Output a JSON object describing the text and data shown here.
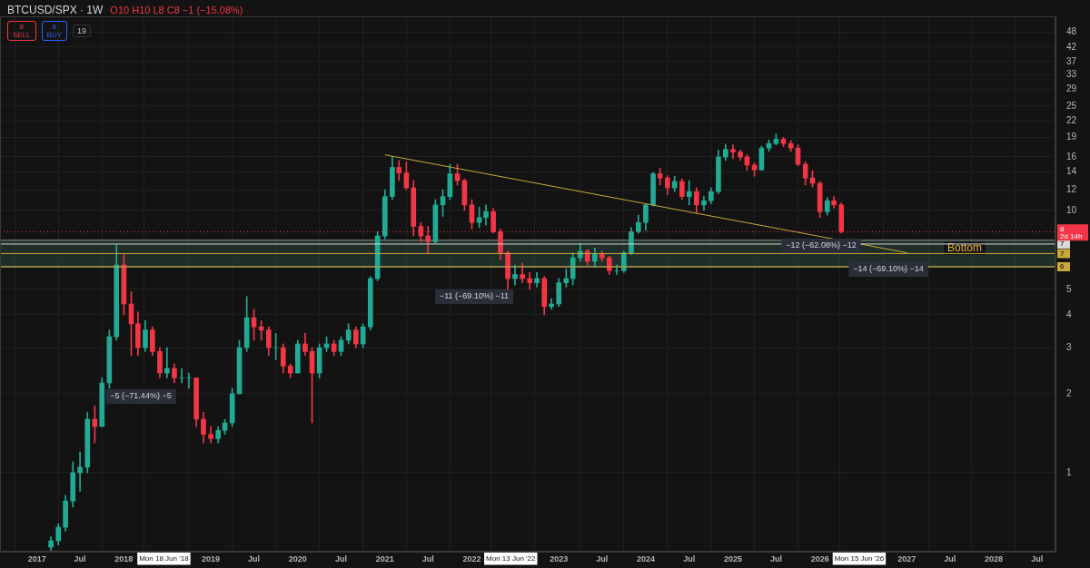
{
  "chart_data": {
    "type": "candlestick",
    "title": "BTCUSD/SPX · 1W",
    "subtitle": "O10 H10 L8 C8 −1 (−15.08%)",
    "x": [
      "2017-03",
      "2017-04",
      "2017-05",
      "2017-06",
      "2017-07",
      "2017-08",
      "2017-09",
      "2017-10",
      "2017-11",
      "2017-12",
      "2018-01",
      "2018-02",
      "2018-03",
      "2018-04",
      "2018-05",
      "2018-06",
      "2018-07",
      "2018-08",
      "2018-09",
      "2018-10",
      "2018-11",
      "2018-12",
      "2019-01",
      "2019-02",
      "2019-03",
      "2019-04",
      "2019-05",
      "2019-06",
      "2019-07",
      "2019-08",
      "2019-09",
      "2019-10",
      "2019-11",
      "2019-12",
      "2020-01",
      "2020-02",
      "2020-03",
      "2020-04",
      "2020-05",
      "2020-06",
      "2020-07",
      "2020-08",
      "2020-09",
      "2020-10",
      "2020-11",
      "2020-12",
      "2021-01",
      "2021-02",
      "2021-03",
      "2021-04",
      "2021-05",
      "2021-06",
      "2021-07",
      "2021-08",
      "2021-09",
      "2021-10",
      "2021-11",
      "2021-12",
      "2022-01",
      "2022-02",
      "2022-03",
      "2022-04",
      "2022-05",
      "2022-06",
      "2022-07",
      "2022-08",
      "2022-09",
      "2022-10",
      "2022-11",
      "2022-12",
      "2023-01",
      "2023-02",
      "2023-03",
      "2023-04",
      "2023-05",
      "2023-06",
      "2023-07",
      "2023-08",
      "2023-09",
      "2023-10",
      "2023-11",
      "2023-12",
      "2024-01",
      "2024-02",
      "2024-03",
      "2024-04",
      "2024-05",
      "2024-06",
      "2024-07",
      "2024-08",
      "2024-09",
      "2024-10",
      "2024-11",
      "2024-12",
      "2025-01",
      "2025-02",
      "2025-03",
      "2025-04",
      "2025-05",
      "2025-06",
      "2025-07",
      "2025-08",
      "2025-09",
      "2025-10",
      "2025-11",
      "2025-12",
      "2026-01",
      "2026-02",
      "2026-03",
      "2026-04"
    ],
    "ohlc": [
      [
        0.52,
        0.57,
        0.5,
        0.55
      ],
      [
        0.55,
        0.64,
        0.53,
        0.62
      ],
      [
        0.62,
        0.82,
        0.6,
        0.78
      ],
      [
        0.78,
        1.1,
        0.74,
        1.0
      ],
      [
        1.0,
        1.2,
        0.85,
        1.05
      ],
      [
        1.05,
        1.7,
        1.0,
        1.6
      ],
      [
        1.6,
        1.8,
        1.3,
        1.5
      ],
      [
        1.5,
        2.3,
        1.5,
        2.2
      ],
      [
        2.2,
        3.5,
        2.1,
        3.3
      ],
      [
        3.3,
        7.4,
        3.2,
        6.2
      ],
      [
        6.2,
        6.8,
        4.0,
        4.4
      ],
      [
        4.4,
        4.9,
        2.8,
        3.7
      ],
      [
        3.7,
        4.1,
        2.8,
        3.0
      ],
      [
        3.0,
        3.8,
        2.9,
        3.5
      ],
      [
        3.5,
        3.6,
        2.8,
        2.9
      ],
      [
        2.9,
        3.0,
        2.3,
        2.4
      ],
      [
        2.4,
        3.0,
        2.3,
        2.5
      ],
      [
        2.5,
        2.6,
        2.2,
        2.3
      ],
      [
        2.3,
        2.5,
        2.2,
        2.3
      ],
      [
        2.3,
        2.4,
        2.1,
        2.3
      ],
      [
        2.3,
        2.3,
        1.5,
        1.6
      ],
      [
        1.6,
        1.7,
        1.3,
        1.4
      ],
      [
        1.4,
        1.5,
        1.3,
        1.35
      ],
      [
        1.35,
        1.5,
        1.3,
        1.45
      ],
      [
        1.45,
        1.6,
        1.4,
        1.55
      ],
      [
        1.55,
        2.1,
        1.5,
        2.0
      ],
      [
        2.0,
        3.2,
        2.0,
        3.0
      ],
      [
        3.0,
        4.7,
        2.9,
        3.9
      ],
      [
        3.9,
        4.2,
        3.2,
        3.6
      ],
      [
        3.6,
        3.8,
        3.2,
        3.5
      ],
      [
        3.5,
        3.6,
        2.8,
        3.0
      ],
      [
        3.0,
        3.4,
        2.7,
        3.0
      ],
      [
        3.0,
        3.1,
        2.4,
        2.55
      ],
      [
        2.55,
        2.6,
        2.3,
        2.4
      ],
      [
        2.4,
        3.2,
        2.4,
        3.1
      ],
      [
        3.1,
        3.4,
        2.8,
        2.9
      ],
      [
        2.9,
        3.0,
        1.55,
        2.4
      ],
      [
        2.4,
        3.1,
        2.3,
        3.0
      ],
      [
        3.0,
        3.3,
        2.9,
        3.1
      ],
      [
        3.1,
        3.2,
        2.8,
        2.9
      ],
      [
        2.9,
        3.3,
        2.8,
        3.2
      ],
      [
        3.2,
        3.7,
        3.1,
        3.5
      ],
      [
        3.5,
        3.6,
        3.0,
        3.1
      ],
      [
        3.1,
        3.7,
        3.0,
        3.6
      ],
      [
        3.6,
        5.6,
        3.5,
        5.5
      ],
      [
        5.5,
        8.3,
        5.4,
        8.0
      ],
      [
        8.0,
        12,
        7.8,
        11.3
      ],
      [
        11.3,
        16,
        11,
        14.6
      ],
      [
        14.6,
        15.5,
        13,
        13.9
      ],
      [
        13.9,
        15.3,
        12,
        12.2
      ],
      [
        12.2,
        13,
        8.0,
        8.7
      ],
      [
        8.7,
        9.0,
        7.6,
        8.0
      ],
      [
        8.0,
        8.7,
        6.9,
        7.6
      ],
      [
        7.6,
        11,
        7.5,
        10.5
      ],
      [
        10.5,
        12,
        9.5,
        11.3
      ],
      [
        11.3,
        15,
        11,
        13.8
      ],
      [
        13.8,
        15,
        12.5,
        13.0
      ],
      [
        13.0,
        13.2,
        10,
        10.5
      ],
      [
        10.5,
        11,
        8.5,
        9.0
      ],
      [
        9.0,
        10.3,
        8.6,
        9.4
      ],
      [
        9.4,
        10.5,
        8.8,
        9.9
      ],
      [
        9.9,
        10.2,
        8.2,
        8.3
      ],
      [
        8.3,
        8.5,
        6.5,
        6.9
      ],
      [
        6.9,
        7.0,
        5.0,
        5.5
      ],
      [
        5.5,
        6.2,
        5.2,
        5.7
      ],
      [
        5.7,
        6.3,
        5.3,
        5.5
      ],
      [
        5.5,
        5.8,
        5.0,
        5.3
      ],
      [
        5.3,
        5.8,
        5.1,
        5.5
      ],
      [
        5.5,
        5.6,
        4.0,
        4.3
      ],
      [
        4.3,
        4.6,
        4.2,
        4.4
      ],
      [
        4.4,
        5.5,
        4.3,
        5.3
      ],
      [
        5.3,
        6.0,
        5.1,
        5.5
      ],
      [
        5.5,
        6.9,
        5.2,
        6.6
      ],
      [
        6.6,
        7.5,
        6.4,
        7.0
      ],
      [
        7.0,
        7.1,
        6.2,
        6.4
      ],
      [
        6.4,
        7.2,
        6.1,
        6.8
      ],
      [
        6.8,
        7.0,
        6.4,
        6.6
      ],
      [
        6.6,
        6.7,
        5.7,
        5.9
      ],
      [
        5.9,
        6.2,
        5.7,
        5.9
      ],
      [
        5.9,
        7.0,
        5.8,
        6.9
      ],
      [
        6.9,
        8.6,
        6.8,
        8.3
      ],
      [
        8.3,
        9.6,
        8.2,
        9.0
      ],
      [
        9.0,
        10.6,
        8.4,
        10.5
      ],
      [
        10.5,
        14,
        10.4,
        13.8
      ],
      [
        13.8,
        14.5,
        12.5,
        13.3
      ],
      [
        13.3,
        13.6,
        11.5,
        12.2
      ],
      [
        12.2,
        13.5,
        11.8,
        12.9
      ],
      [
        12.9,
        13.2,
        11,
        11.3
      ],
      [
        11.3,
        13,
        10.5,
        11.8
      ],
      [
        11.8,
        12.2,
        9.8,
        10.5
      ],
      [
        10.5,
        11.3,
        10,
        10.9
      ],
      [
        10.9,
        12.2,
        10.6,
        11.8
      ],
      [
        11.8,
        17,
        11.6,
        16.0
      ],
      [
        16.0,
        17.9,
        15.5,
        17.1
      ],
      [
        17.1,
        17.8,
        15.8,
        16.7
      ],
      [
        16.7,
        17,
        15.5,
        16.0
      ],
      [
        16.0,
        16.3,
        14.2,
        14.9
      ],
      [
        14.9,
        15.2,
        13.5,
        14.3
      ],
      [
        14.3,
        17.6,
        14.2,
        17.3
      ],
      [
        17.3,
        18.6,
        16.8,
        18.0
      ],
      [
        18.0,
        19.6,
        17.8,
        18.7
      ],
      [
        18.7,
        19.0,
        17.5,
        18.0
      ],
      [
        18.0,
        18.5,
        16.8,
        17.3
      ],
      [
        17.3,
        17.8,
        14.8,
        15.0
      ],
      [
        15.0,
        15.3,
        12.5,
        13.3
      ],
      [
        13.3,
        14.2,
        12.3,
        12.7
      ],
      [
        12.7,
        12.9,
        9.4,
        9.9
      ],
      [
        9.9,
        11.2,
        9.6,
        10.9
      ],
      [
        10.9,
        11.3,
        10.2,
        10.5
      ],
      [
        10.5,
        10.7,
        8.2,
        8.3
      ]
    ],
    "series": [
      {
        "type": "line",
        "color": "#c9a83a",
        "x": [
          "2021-01-01",
          "2027-01-01"
        ],
        "values": [
          16.3,
          6.9
        ]
      }
    ],
    "log": "y",
    "grid": true,
    "legend": false,
    "ylim": [
      0.5,
      55
    ],
    "yticks": [
      1,
      2,
      3,
      4,
      5,
      10,
      12,
      14,
      16,
      19,
      22,
      25,
      29,
      33,
      37,
      42,
      48
    ],
    "xlim": [
      "2016-07-30",
      "2028-09-16"
    ],
    "xticks": [
      {
        "value": "2017-01-01",
        "label": "2017"
      },
      {
        "value": "2017-07-01",
        "label": "Jul"
      },
      {
        "value": "2018-01-01",
        "label": "2018"
      },
      {
        "value": "2018-06-18",
        "label": "Mon 18 Jun '18"
      },
      {
        "value": "2019-01-01",
        "label": "2019"
      },
      {
        "value": "2019-07-01",
        "label": "Jul"
      },
      {
        "value": "2020-01-01",
        "label": "2020"
      },
      {
        "value": "2020-07-01",
        "label": "Jul"
      },
      {
        "value": "2021-01-01",
        "label": "2021"
      },
      {
        "value": "2021-07-01",
        "label": "Jul"
      },
      {
        "value": "2022-01-01",
        "label": "2022"
      },
      {
        "value": "2022-06-13",
        "label": "Mon 13 Jun '22"
      },
      {
        "value": "2023-01-01",
        "label": "2023"
      },
      {
        "value": "2023-07-01",
        "label": "Jul"
      },
      {
        "value": "2024-01-01",
        "label": "2024"
      },
      {
        "value": "2024-07-01",
        "label": "Jul"
      },
      {
        "value": "2025-01-01",
        "label": "2025"
      },
      {
        "value": "2025-07-01",
        "label": "Jul"
      },
      {
        "value": "2026-01-01",
        "label": "2026"
      },
      {
        "value": "2026-06-15",
        "label": "Mon 15 Jun '26"
      },
      {
        "value": "2027-01-01",
        "label": "2027"
      },
      {
        "value": "2027-07-01",
        "label": "Jul"
      },
      {
        "value": "2028-01-01",
        "label": "2028"
      },
      {
        "value": "2028-07-01",
        "label": "Jul"
      }
    ],
    "ref_lines": [
      {
        "axis": "y",
        "value": 8.3,
        "label": "8\n2d 14h",
        "color": "#f23645",
        "line_style": "dotted"
      },
      {
        "axis": "y",
        "value": 7.45,
        "label": "7",
        "color": "#d9d9d9"
      },
      {
        "axis": "y",
        "value": 6.85,
        "label": "7",
        "color": "#c9a83a"
      },
      {
        "axis": "y",
        "value": 6.1,
        "label": "6",
        "color": "#c9a83a"
      }
    ],
    "bands": [
      {
        "axis": "y",
        "from": 6.1,
        "to": 7.7,
        "label": "Bottom",
        "color": "#2e4f45"
      }
    ],
    "annotations": [
      "8\nSELL",
      "8\nBUY",
      "19",
      "−5 (−71.44%) −5",
      "−11 (−69.10%) −11",
      "−12 (−62.08%) −12",
      "−14 (−69.10%) −14"
    ]
  }
}
